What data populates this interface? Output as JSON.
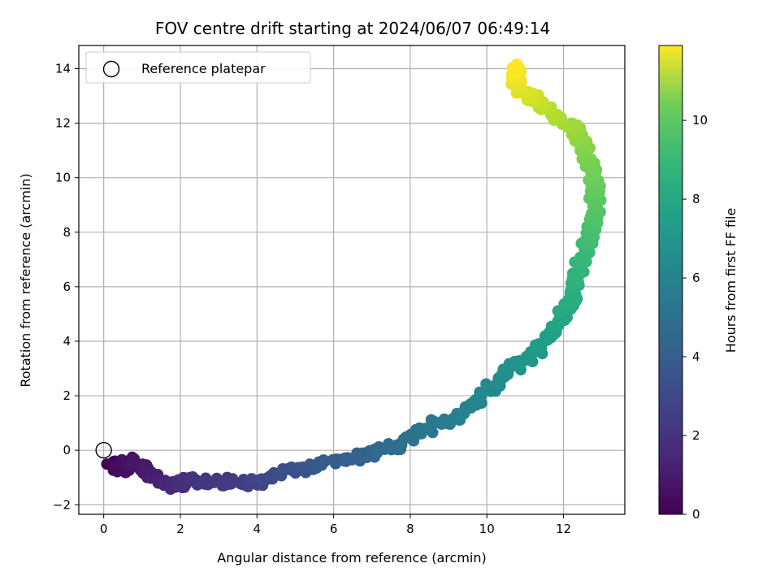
{
  "chart_data": {
    "type": "scatter",
    "title": "FOV centre drift starting at 2024/06/07 06:49:14",
    "xlabel": "Angular distance from reference (arcmin)",
    "ylabel": "Rotation from reference (arcmin)",
    "xlim": [
      -0.65,
      13.6
    ],
    "ylim": [
      -2.35,
      14.85
    ],
    "xticks": [
      0,
      2,
      4,
      6,
      8,
      10,
      12
    ],
    "yticks": [
      -2,
      0,
      2,
      4,
      6,
      8,
      10,
      12,
      14
    ],
    "grid": true,
    "legend": {
      "position": "top-left",
      "entries": [
        {
          "label": "Reference platepar",
          "marker": "open-circle",
          "x": 0,
          "y": 0
        }
      ]
    },
    "colorbar": {
      "label": "Hours from first FF file",
      "colormap": "viridis",
      "range": [
        0,
        11.9
      ],
      "ticks": [
        0,
        2,
        4,
        6,
        8,
        10
      ]
    },
    "anchors": [
      [
        0.0,
        0.2,
        -0.5
      ],
      [
        0.4,
        0.5,
        -0.7
      ],
      [
        0.6,
        0.65,
        -0.3
      ],
      [
        1.0,
        1.3,
        -1.0
      ],
      [
        1.4,
        1.9,
        -1.3
      ],
      [
        1.7,
        2.1,
        -1.1
      ],
      [
        2.3,
        3.9,
        -1.2
      ],
      [
        2.7,
        4.3,
        -1.0
      ],
      [
        3.0,
        5.0,
        -0.7
      ],
      [
        3.3,
        5.6,
        -0.6
      ],
      [
        3.6,
        6.4,
        -0.3
      ],
      [
        3.9,
        7.0,
        -0.1
      ],
      [
        4.2,
        7.6,
        0.1
      ],
      [
        4.5,
        8.1,
        0.5
      ],
      [
        4.8,
        8.7,
        1.0
      ],
      [
        5.1,
        9.2,
        1.2
      ],
      [
        5.4,
        9.7,
        1.8
      ],
      [
        5.7,
        10.2,
        2.4
      ],
      [
        6.0,
        10.7,
        3.0
      ],
      [
        6.3,
        11.2,
        3.5
      ],
      [
        6.6,
        11.6,
        4.1
      ],
      [
        6.9,
        11.9,
        4.7
      ],
      [
        7.2,
        12.1,
        5.3
      ],
      [
        7.5,
        12.3,
        6.0
      ],
      [
        7.8,
        12.4,
        6.8
      ],
      [
        8.1,
        12.6,
        7.5
      ],
      [
        8.4,
        12.75,
        8.2
      ],
      [
        8.7,
        12.85,
        8.9
      ],
      [
        9.0,
        12.8,
        9.6
      ],
      [
        9.3,
        12.7,
        10.3
      ],
      [
        9.6,
        12.55,
        11.0
      ],
      [
        9.9,
        12.4,
        11.6
      ],
      [
        10.2,
        12.1,
        12.0
      ],
      [
        10.5,
        11.7,
        12.4
      ],
      [
        10.8,
        11.35,
        12.8
      ],
      [
        11.1,
        11.2,
        13.0
      ],
      [
        11.4,
        10.75,
        13.4
      ],
      [
        11.9,
        10.75,
        14.1
      ]
    ]
  }
}
